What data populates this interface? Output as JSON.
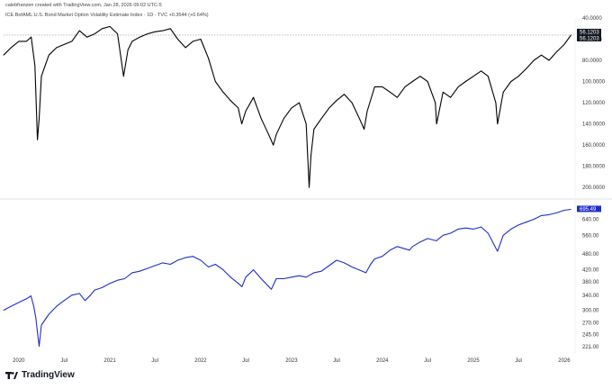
{
  "header": {
    "credit": "calebfranzen created with TradingView.com, Jan 28, 2026 09:02 UTC-5",
    "symbol": "ICE BofAML U.S. Bond Market Option Volatility Estimate Index · 1D · TVC  +0.3544 (+0.64%)"
  },
  "brand": {
    "name": "TradingView",
    "logo_icon": "tradingview-logo-icon"
  },
  "colors": {
    "top_series": "#000000",
    "bottom_series": "#1f2ec9",
    "badge_top": "#131722",
    "badge_bottom": "#1f2ec9"
  },
  "chart_data": [
    {
      "type": "line",
      "series": [
        {
          "name": "ICE BofAML U.S. Bond Market Option Volatility Estimate Index",
          "x": [
            "2019-11-01",
            "2019-12-01",
            "2020-01-01",
            "2020-02-01",
            "2020-02-20",
            "2020-03-06",
            "2020-03-16",
            "2020-03-23",
            "2020-04-01",
            "2020-05-01",
            "2020-06-01",
            "2020-07-01",
            "2020-08-01",
            "2020-09-01",
            "2020-10-01",
            "2020-11-01",
            "2020-12-01",
            "2021-01-01",
            "2021-02-01",
            "2021-02-25",
            "2021-03-15",
            "2021-04-01",
            "2021-05-01",
            "2021-06-01",
            "2021-07-01",
            "2021-08-01",
            "2021-09-01",
            "2021-10-01",
            "2021-11-01",
            "2021-12-01",
            "2022-01-01",
            "2022-02-01",
            "2022-03-01",
            "2022-04-01",
            "2022-05-01",
            "2022-06-01",
            "2022-06-15",
            "2022-07-01",
            "2022-08-01",
            "2022-09-01",
            "2022-10-01",
            "2022-10-20",
            "2022-11-01",
            "2022-12-01",
            "2023-01-01",
            "2023-02-01",
            "2023-03-01",
            "2023-03-13",
            "2023-03-20",
            "2023-04-01",
            "2023-05-01",
            "2023-06-01",
            "2023-07-01",
            "2023-08-01",
            "2023-09-01",
            "2023-10-01",
            "2023-10-20",
            "2023-11-01",
            "2023-12-01",
            "2024-01-01",
            "2024-02-01",
            "2024-03-01",
            "2024-04-01",
            "2024-05-01",
            "2024-06-01",
            "2024-07-01",
            "2024-08-01",
            "2024-08-06",
            "2024-09-01",
            "2024-10-01",
            "2024-11-01",
            "2024-12-01",
            "2025-01-01",
            "2025-02-01",
            "2025-03-01",
            "2025-04-01",
            "2025-04-08",
            "2025-05-01",
            "2025-06-01",
            "2025-07-01",
            "2025-08-01",
            "2025-09-01",
            "2025-10-01",
            "2025-11-01",
            "2025-12-01",
            "2026-01-01",
            "2026-01-28"
          ],
          "y": [
            75,
            68,
            62,
            62,
            58,
            85,
            155,
            135,
            95,
            75,
            68,
            65,
            62,
            52,
            58,
            55,
            50,
            48,
            55,
            95,
            70,
            62,
            58,
            55,
            53,
            52,
            50,
            60,
            68,
            62,
            60,
            78,
            100,
            110,
            118,
            125,
            140,
            128,
            115,
            135,
            150,
            160,
            150,
            135,
            125,
            120,
            140,
            200,
            170,
            145,
            135,
            125,
            118,
            112,
            120,
            135,
            145,
            128,
            105,
            105,
            110,
            115,
            105,
            100,
            95,
            100,
            120,
            140,
            110,
            115,
            105,
            100,
            95,
            90,
            95,
            120,
            140,
            110,
            100,
            95,
            88,
            80,
            75,
            80,
            72,
            65,
            56.1203
          ]
        }
      ],
      "ylim": [
        40,
        205
      ],
      "yscale": "inverted",
      "yticks": [
        40,
        60,
        80,
        100,
        120,
        140,
        160,
        180,
        200
      ],
      "ytick_labels": [
        "40.0000",
        "60.0000",
        "80.0000",
        "100.0000",
        "120.0000",
        "140.0000",
        "160.0000",
        "180.0000",
        "200.0000"
      ],
      "last_value_labels": [
        "56.1203",
        "56.1203"
      ],
      "reference_line": 56.1203,
      "grid": false
    },
    {
      "type": "line",
      "series": [
        {
          "name": "",
          "x": [
            "2019-11-01",
            "2019-12-01",
            "2020-01-01",
            "2020-02-01",
            "2020-02-19",
            "2020-03-01",
            "2020-03-10",
            "2020-03-16",
            "2020-03-23",
            "2020-04-01",
            "2020-05-01",
            "2020-06-01",
            "2020-07-01",
            "2020-08-01",
            "2020-09-01",
            "2020-09-23",
            "2020-10-15",
            "2020-11-01",
            "2020-12-01",
            "2021-01-01",
            "2021-02-01",
            "2021-03-01",
            "2021-04-01",
            "2021-05-01",
            "2021-06-01",
            "2021-07-01",
            "2021-08-01",
            "2021-09-01",
            "2021-10-01",
            "2021-11-01",
            "2021-12-01",
            "2022-01-01",
            "2022-02-01",
            "2022-03-01",
            "2022-04-01",
            "2022-05-01",
            "2022-06-01",
            "2022-06-16",
            "2022-07-01",
            "2022-08-01",
            "2022-09-01",
            "2022-10-12",
            "2022-11-01",
            "2022-12-01",
            "2023-01-01",
            "2023-02-01",
            "2023-03-01",
            "2023-04-01",
            "2023-05-01",
            "2023-06-01",
            "2023-07-01",
            "2023-08-01",
            "2023-09-01",
            "2023-10-27",
            "2023-11-15",
            "2023-12-01",
            "2024-01-01",
            "2024-02-01",
            "2024-03-01",
            "2024-04-19",
            "2024-05-01",
            "2024-06-01",
            "2024-07-01",
            "2024-08-05",
            "2024-09-01",
            "2024-10-01",
            "2024-11-01",
            "2024-12-01",
            "2025-01-01",
            "2025-02-01",
            "2025-03-01",
            "2025-04-08",
            "2025-05-01",
            "2025-06-01",
            "2025-07-01",
            "2025-08-01",
            "2025-09-01",
            "2025-10-01",
            "2025-11-01",
            "2025-12-01",
            "2026-01-01",
            "2026-01-28"
          ],
          "y": [
            300,
            310,
            320,
            330,
            338,
            310,
            280,
            250,
            222,
            265,
            290,
            310,
            325,
            340,
            345,
            325,
            340,
            355,
            362,
            375,
            385,
            390,
            410,
            415,
            425,
            435,
            445,
            440,
            455,
            465,
            470,
            455,
            430,
            440,
            420,
            395,
            375,
            365,
            395,
            420,
            390,
            357,
            390,
            390,
            395,
            400,
            395,
            410,
            415,
            435,
            455,
            445,
            430,
            410,
            440,
            460,
            470,
            495,
            510,
            495,
            510,
            530,
            545,
            535,
            560,
            570,
            590,
            595,
            590,
            600,
            570,
            490,
            560,
            590,
            610,
            625,
            640,
            660,
            665,
            675,
            690,
            695.49
          ]
        }
      ],
      "ylim": [
        210,
        730
      ],
      "yscale": "log",
      "yticks": [
        221,
        245,
        270,
        300,
        340,
        380,
        420,
        480,
        560,
        640
      ],
      "ytick_labels": [
        "221.00",
        "245.00",
        "270.00",
        "300.00",
        "340.00",
        "380.00",
        "420.00",
        "480.00",
        "560.00",
        "640.00"
      ],
      "last_value_labels": [
        "695.49"
      ],
      "grid": false
    }
  ],
  "x_axis": {
    "ticks": [
      "2020-01-01",
      "2020-07-01",
      "2021-01-01",
      "2021-07-01",
      "2022-01-01",
      "2022-07-01",
      "2023-01-01",
      "2023-07-01",
      "2024-01-01",
      "2024-07-01",
      "2025-01-01",
      "2025-07-01",
      "2026-01-01"
    ],
    "tick_labels": [
      "2020",
      "Jul",
      "2021",
      "Jul",
      "2022",
      "Jul",
      "2023",
      "Jul",
      "2024",
      "Jul",
      "2025",
      "Jul",
      "2026"
    ]
  }
}
